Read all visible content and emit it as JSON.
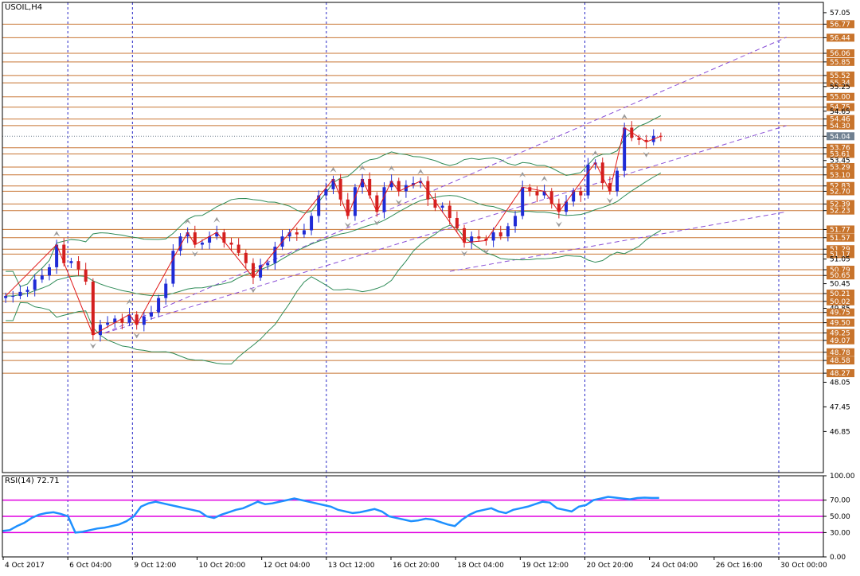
{
  "main_title": "USOIL,H4",
  "rsi_title": "RSI(14) 72.71",
  "colors": {
    "up_candle": "#1f2bd6",
    "down_candle": "#d41f1f",
    "level_line": "#c87533",
    "level_tag": "#c8742c",
    "current_price_tag": "#708090",
    "channel": "#8a4fd6",
    "bollinger": "#2e8b57",
    "zigzag": "#e01818",
    "rsi_line": "#1e90ff",
    "rsi_levels": "#e000e0",
    "vgrid": "#2828c8",
    "fractal": "#9a9a9a"
  },
  "chart_data": [
    {
      "type": "candlestick",
      "title": "USOIL,H4",
      "ylim": [
        45.85,
        57.3
      ],
      "y_ticks": [
        "57.05",
        "56.77",
        "56.44",
        "56.06",
        "55.85",
        "55.52",
        "55.34",
        "55.25",
        "55.00",
        "54.75",
        "54.65",
        "54.46",
        "54.30",
        "54.04",
        "53.76",
        "53.61",
        "53.45",
        "53.29",
        "53.10",
        "52.83",
        "52.70",
        "52.39",
        "52.23",
        "51.77",
        "51.57",
        "51.29",
        "51.17",
        "51.05",
        "50.79",
        "50.65",
        "50.45",
        "50.21",
        "50.02",
        "49.85",
        "49.75",
        "49.50",
        "49.25",
        "49.07",
        "48.78",
        "48.58",
        "48.27",
        "48.05",
        "47.45",
        "46.85"
      ],
      "tagged_levels": [
        "56.77",
        "56.44",
        "56.06",
        "55.85",
        "55.52",
        "55.34",
        "55.00",
        "54.75",
        "54.46",
        "54.30",
        "53.76",
        "53.61",
        "53.29",
        "53.10",
        "52.83",
        "52.70",
        "52.39",
        "52.23",
        "51.77",
        "51.57",
        "51.29",
        "51.17",
        "50.79",
        "50.65",
        "50.21",
        "50.02",
        "49.75",
        "49.50",
        "49.25",
        "49.07",
        "48.78",
        "48.58",
        "48.27"
      ],
      "current_price": "54.04",
      "x_labels": [
        "4 Oct 2017",
        "6 Oct 04:00",
        "9 Oct 12:00",
        "10 Oct 20:00",
        "12 Oct 04:00",
        "13 Oct 12:00",
        "16 Oct 20:00",
        "18 Oct 04:00",
        "19 Oct 12:00",
        "20 Oct 20:00",
        "24 Oct 04:00",
        "26 Oct 16:00",
        "30 Oct 00:00"
      ],
      "period_separators": [
        "6 Oct 04:00",
        "9 Oct 12:00",
        "13 Oct 12:00",
        "20 Oct 20:00",
        "30 Oct 00:00"
      ],
      "close_path": [
        50.15,
        50.15,
        50.25,
        50.3,
        50.55,
        50.65,
        50.85,
        51.4,
        50.95,
        51.0,
        50.8,
        50.5,
        49.2,
        49.45,
        49.5,
        49.6,
        49.5,
        49.7,
        49.45,
        49.65,
        49.75,
        50.1,
        50.45,
        51.25,
        51.6,
        51.7,
        51.4,
        51.45,
        51.6,
        51.7,
        51.45,
        51.4,
        51.2,
        50.95,
        50.6,
        50.9,
        50.95,
        51.35,
        51.6,
        51.7,
        51.65,
        51.75,
        52.1,
        52.6,
        52.75,
        53.0,
        52.5,
        52.1,
        52.8,
        53.0,
        52.6,
        52.2,
        52.8,
        52.95,
        52.7,
        52.85,
        52.9,
        52.95,
        52.5,
        52.3,
        52.35,
        52.05,
        51.8,
        51.45,
        51.6,
        51.55,
        51.5,
        51.7,
        51.6,
        51.85,
        52.1,
        52.8,
        52.7,
        52.6,
        52.7,
        52.4,
        52.2,
        52.45,
        52.7,
        52.6,
        53.35,
        53.4,
        52.9,
        52.7,
        53.2,
        54.25,
        54.0,
        53.95,
        53.9,
        54.05,
        54.04
      ]
    },
    {
      "type": "line",
      "title": "RSI(14) 72.71",
      "ylim": [
        0,
        100
      ],
      "y_ticks": [
        "100.00",
        "70.00",
        "50.00",
        "30.00",
        "0.00"
      ],
      "levels": [
        70,
        50,
        30
      ],
      "last_value": 72.71,
      "values": [
        32,
        33,
        38,
        42,
        48,
        52,
        54,
        55,
        53,
        50,
        30,
        31,
        33,
        35,
        36,
        38,
        40,
        44,
        50,
        62,
        66,
        68,
        66,
        64,
        62,
        60,
        58,
        56,
        50,
        48,
        52,
        55,
        58,
        60,
        64,
        68,
        65,
        66,
        68,
        70,
        72,
        70,
        68,
        66,
        64,
        62,
        58,
        56,
        54,
        55,
        57,
        59,
        56,
        50,
        48,
        46,
        44,
        45,
        47,
        46,
        43,
        40,
        38,
        46,
        52,
        56,
        58,
        60,
        56,
        54,
        58,
        60,
        62,
        65,
        68,
        67,
        60,
        58,
        56,
        62,
        64,
        70,
        72,
        74,
        73,
        72,
        71,
        72.5,
        73,
        72.7,
        72.71
      ]
    }
  ]
}
